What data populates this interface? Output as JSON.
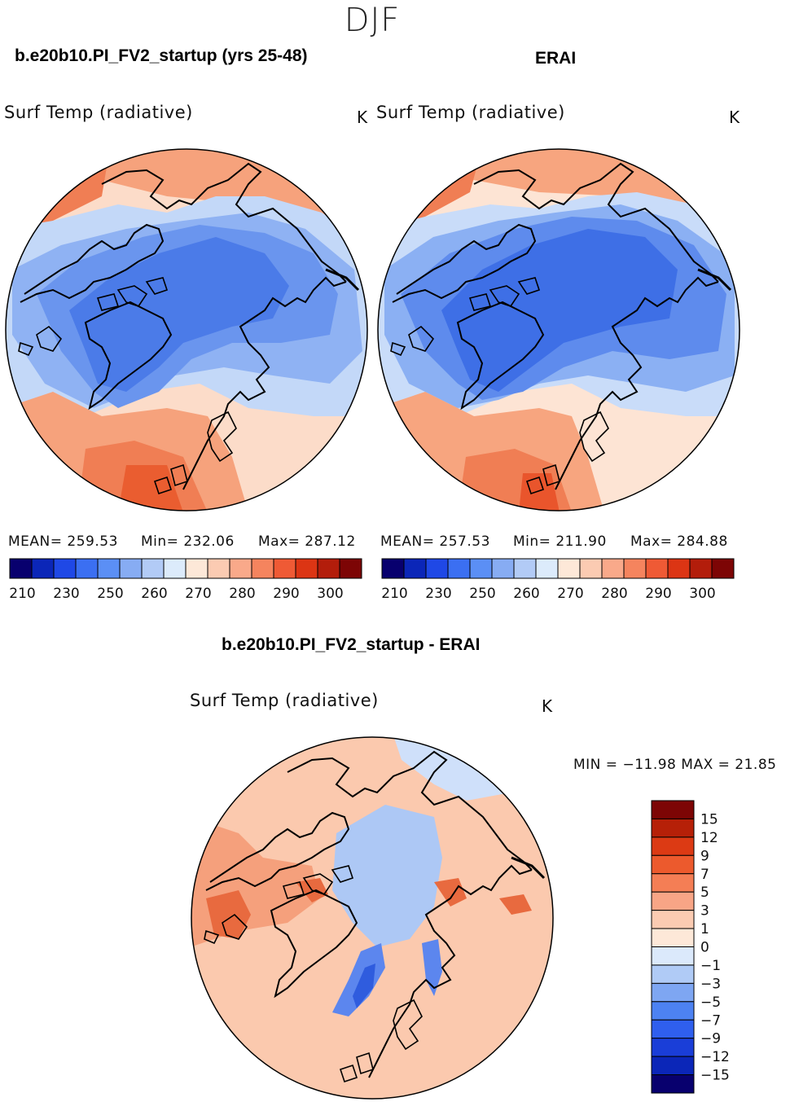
{
  "figure": {
    "season": "DJF",
    "variable": "Surf Temp (radiative)",
    "unit": "K"
  },
  "panels": [
    {
      "title": "b.e20b10.PI_FV2_startup (yrs 25-48)",
      "stats": {
        "mean": "MEAN= 259.53",
        "min": "Min= 232.06",
        "max": "Max= 287.12"
      },
      "colorbar": {
        "colors": [
          "#08006e",
          "#0b26b8",
          "#1f48e6",
          "#3b6ff2",
          "#5b8ff5",
          "#87acf3",
          "#b2cbf6",
          "#dcebfb",
          "#fde8d8",
          "#fbcbb2",
          "#f9a98a",
          "#f5845e",
          "#ef5a35",
          "#dc3514",
          "#b31d0b",
          "#7d0505"
        ],
        "labels": [
          "210",
          "230",
          "250",
          "260",
          "270",
          "280",
          "290",
          "300"
        ]
      },
      "map_colors": [
        "#4b7be8",
        "#6a95ee",
        "#8fb2f3",
        "#c3d8f8",
        "#fcdcc9",
        "#f6a27c",
        "#f07e54",
        "#ea5d30"
      ]
    },
    {
      "title": "ERAI",
      "stats": {
        "mean": "MEAN= 257.53",
        "min": "Min= 211.90",
        "max": "Max= 284.88"
      },
      "colorbar": {
        "colors": [
          "#08006e",
          "#0b26b8",
          "#1f48e6",
          "#3b6ff2",
          "#5b8ff5",
          "#87acf3",
          "#b2cbf6",
          "#dcebfb",
          "#fde8d8",
          "#fbcbb2",
          "#f9a98a",
          "#f5845e",
          "#ef5a35",
          "#dc3514",
          "#b31d0b",
          "#7d0505"
        ],
        "labels": [
          "210",
          "230",
          "250",
          "260",
          "270",
          "280",
          "290",
          "300"
        ]
      },
      "map_colors": [
        "#3e6fe6",
        "#5e8bed",
        "#8bb0f3",
        "#c9dcf9",
        "#fde4d4",
        "#f7a57f",
        "#f07e54",
        "#e9552c"
      ]
    },
    {
      "title": "b.e20b10.PI_FV2_startup - ERAI",
      "stats": {
        "min_label": "MIN =",
        "min": "−11.98",
        "max_label": "MAX =",
        "max": "21.85"
      },
      "colorbar": {
        "colors": [
          "#08006e",
          "#0b26b8",
          "#1a3ed8",
          "#2f5fee",
          "#4d82f2",
          "#7ea6f2",
          "#b0cbf6",
          "#dbe9fb",
          "#fde8d8",
          "#fbcbb2",
          "#f8a586",
          "#f47e55",
          "#ec5a2d",
          "#dc3a14",
          "#b62008",
          "#7d0505"
        ],
        "labels": [
          "15",
          "12",
          "9",
          "7",
          "5",
          "3",
          "1",
          "0",
          "−1",
          "−3",
          "−5",
          "−7",
          "−9",
          "−12",
          "−15"
        ]
      },
      "map_colors": [
        "#fbc9ae",
        "#f5a07c",
        "#cfe0fa",
        "#adc8f5",
        "#5c86ee",
        "#2f5cde",
        "#e86a3f"
      ]
    }
  ]
}
